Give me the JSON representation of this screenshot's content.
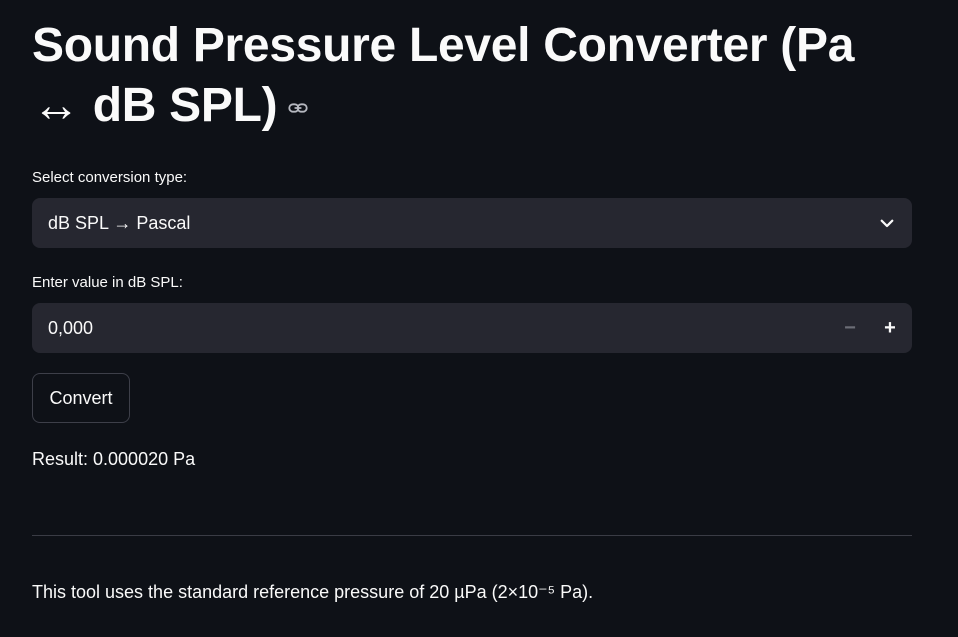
{
  "page": {
    "title": "Sound Pressure Level Converter (Pa ↔ dB SPL)"
  },
  "conversion": {
    "label": "Select conversion type:",
    "selected": "dB SPL → Pascal"
  },
  "input": {
    "label": "Enter value in dB SPL:",
    "value": "0,000",
    "decrement": "−",
    "increment": "+"
  },
  "actions": {
    "convert_label": "Convert"
  },
  "result": {
    "text": "Result: 0.000020 Pa"
  },
  "footer": {
    "note": "This tool uses the standard reference pressure of 20 µPa (2×10⁻⁵ Pa)."
  },
  "icons": {
    "anchor": "link-icon",
    "dropdown": "chevron-down-icon"
  },
  "colors": {
    "background": "#0e1117",
    "field": "#262730",
    "text": "#fafafa",
    "muted": "#6b6d76"
  }
}
